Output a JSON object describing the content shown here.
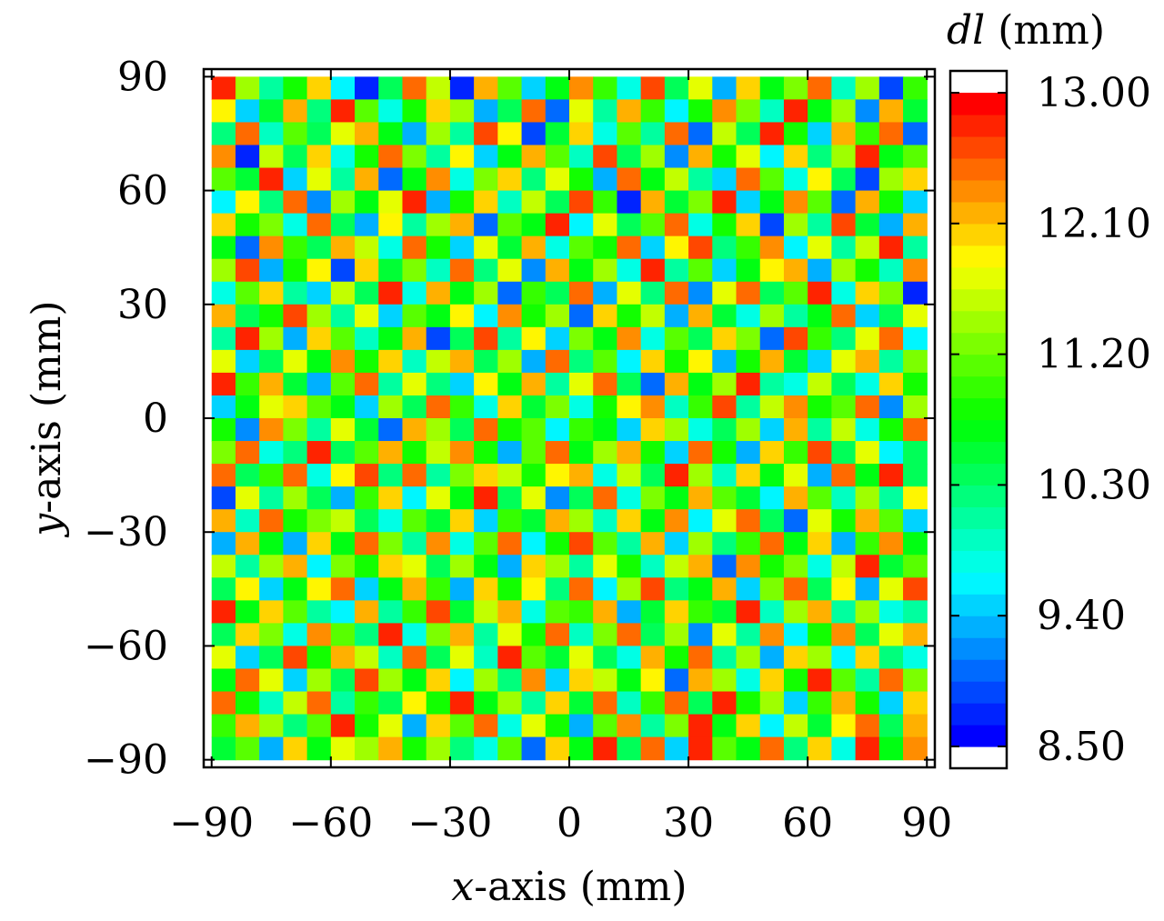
{
  "chart_data": {
    "type": "heatmap",
    "xlabel_var": "x",
    "xlabel": "-axis (mm)",
    "ylabel_var": "y",
    "ylabel": "-axis (mm)",
    "colorbar_label_var": "dl",
    "colorbar_label": " (mm)",
    "xlim": [
      -92,
      92
    ],
    "ylim": [
      -92,
      92
    ],
    "x_ticks": [
      -90,
      -60,
      -30,
      0,
      30,
      60,
      90
    ],
    "x_tick_labels": [
      "−90",
      "−60",
      "−30",
      "0",
      "30",
      "60",
      "90"
    ],
    "y_ticks": [
      -90,
      -60,
      -30,
      0,
      30,
      60,
      90
    ],
    "y_tick_labels": [
      "−90",
      "−60",
      "−30",
      "0",
      "30",
      "60",
      "90"
    ],
    "color_range": [
      8.5,
      13.0
    ],
    "colorbar_ticks": [
      8.5,
      9.4,
      10.3,
      11.2,
      12.1,
      13.0
    ],
    "colorbar_tick_labels": [
      "8.50",
      "9.40",
      "10.30",
      "11.20",
      "12.10",
      "13.00"
    ],
    "grid_size": [
      30,
      30
    ],
    "cell_size_mm": 6,
    "colors": {
      "colormap": [
        "#0000ff",
        "#0080ff",
        "#00ffff",
        "#00ff80",
        "#00ff00",
        "#80ff00",
        "#ffff00",
        "#ff8000",
        "#ff0000"
      ]
    },
    "note_values": "Cell values (mm) per row from top (y=+90) to bottom (y=-90), columns x=-90..+90. Values estimated from a dense random-looking pattern.",
    "values": [
      [
        12.9,
        11.4,
        10.0,
        10.9,
        12.1,
        9.6,
        8.6,
        10.3,
        12.5,
        11.6,
        8.7,
        12.2,
        11.1,
        9.5,
        10.6,
        12.4,
        11.0,
        9.8,
        12.7,
        10.4,
        11.8,
        9.3,
        12.0,
        10.7,
        11.3,
        12.6,
        9.9,
        11.5,
        8.8,
        11.0
      ],
      [
        11.9,
        9.4,
        10.5,
        12.3,
        10.2,
        12.8,
        11.2,
        9.7,
        10.9,
        12.0,
        11.5,
        9.2,
        10.4,
        12.6,
        8.9,
        11.7,
        10.1,
        12.2,
        11.0,
        9.6,
        10.8,
        12.4,
        11.3,
        9.9,
        12.9,
        10.6,
        11.4,
        9.1,
        12.2,
        10.5
      ],
      [
        10.2,
        12.6,
        9.9,
        11.1,
        10.4,
        11.8,
        12.3,
        10.7,
        9.3,
        11.5,
        10.1,
        12.7,
        11.9,
        8.8,
        10.5,
        12.1,
        9.7,
        11.2,
        10.0,
        12.5,
        8.9,
        11.6,
        10.3,
        12.8,
        10.9,
        9.4,
        12.2,
        11.0,
        12.6,
        9.0
      ],
      [
        12.4,
        8.7,
        11.6,
        10.3,
        12.1,
        9.8,
        10.9,
        12.6,
        11.3,
        10.0,
        11.9,
        9.5,
        10.7,
        12.2,
        11.1,
        9.9,
        12.7,
        10.4,
        11.5,
        9.1,
        12.3,
        10.8,
        11.7,
        9.6,
        12.0,
        10.2,
        11.4,
        12.9,
        10.6,
        11.2
      ],
      [
        11.1,
        10.5,
        12.8,
        9.4,
        11.7,
        10.0,
        12.2,
        8.9,
        10.6,
        12.4,
        9.7,
        11.3,
        12.0,
        10.2,
        11.8,
        10.9,
        9.2,
        12.5,
        10.7,
        11.6,
        10.1,
        9.5,
        12.6,
        11.2,
        9.8,
        11.9,
        10.4,
        8.8,
        11.5,
        12.1
      ],
      [
        9.6,
        11.9,
        10.2,
        12.5,
        9.1,
        11.4,
        10.7,
        11.8,
        12.9,
        9.3,
        10.8,
        12.1,
        9.9,
        11.6,
        10.3,
        12.7,
        11.0,
        8.7,
        12.2,
        10.5,
        11.3,
        12.8,
        9.4,
        10.6,
        12.4,
        11.1,
        9.0,
        12.3,
        10.9,
        9.5
      ],
      [
        12.0,
        10.8,
        11.3,
        9.7,
        12.6,
        10.4,
        9.2,
        11.9,
        10.1,
        11.5,
        12.3,
        8.9,
        11.2,
        10.6,
        12.9,
        9.6,
        11.7,
        10.3,
        11.1,
        12.5,
        9.8,
        10.9,
        12.1,
        8.8,
        11.4,
        10.0,
        12.7,
        10.5,
        9.3,
        12.2
      ],
      [
        10.7,
        9.0,
        12.4,
        11.0,
        10.3,
        12.2,
        11.6,
        9.8,
        12.5,
        10.9,
        9.4,
        11.7,
        10.5,
        12.3,
        9.7,
        11.2,
        10.8,
        12.6,
        9.5,
        11.9,
        12.7,
        10.2,
        11.0,
        12.4,
        9.6,
        11.8,
        10.1,
        11.6,
        12.8,
        10.0
      ],
      [
        11.5,
        12.7,
        9.3,
        10.8,
        11.9,
        8.8,
        12.0,
        10.5,
        11.3,
        9.9,
        12.6,
        10.2,
        11.8,
        9.1,
        12.2,
        10.6,
        11.4,
        9.7,
        12.9,
        10.0,
        11.2,
        9.4,
        10.7,
        11.9,
        12.3,
        9.2,
        11.5,
        10.8,
        9.9,
        12.4
      ],
      [
        9.8,
        11.2,
        12.1,
        10.1,
        9.5,
        11.6,
        10.3,
        12.8,
        9.7,
        12.2,
        10.6,
        11.4,
        8.9,
        11.0,
        10.4,
        12.5,
        9.3,
        11.8,
        10.2,
        12.6,
        9.1,
        11.7,
        12.5,
        10.3,
        11.1,
        12.8,
        9.8,
        12.0,
        11.3,
        8.7
      ],
      [
        12.3,
        10.4,
        10.9,
        12.7,
        11.4,
        10.0,
        11.8,
        9.4,
        11.1,
        10.7,
        11.9,
        9.6,
        12.4,
        10.8,
        11.5,
        9.0,
        12.1,
        10.9,
        11.6,
        9.3,
        12.2,
        10.5,
        9.7,
        11.4,
        10.0,
        10.7,
        12.6,
        9.5,
        10.4,
        11.8
      ],
      [
        10.1,
        12.9,
        11.5,
        9.2,
        12.0,
        11.2,
        9.9,
        10.6,
        12.3,
        8.8,
        10.4,
        12.7,
        10.0,
        11.9,
        9.4,
        11.3,
        10.6,
        12.4,
        9.8,
        11.1,
        10.3,
        12.0,
        11.3,
        8.9,
        12.7,
        11.0,
        10.2,
        11.7,
        12.5,
        9.6
      ],
      [
        11.7,
        9.5,
        10.3,
        11.8,
        10.6,
        12.4,
        10.8,
        12.1,
        9.9,
        11.6,
        12.2,
        10.3,
        11.5,
        9.3,
        12.6,
        10.2,
        11.1,
        9.6,
        12.0,
        10.8,
        11.9,
        9.2,
        10.9,
        12.3,
        10.5,
        9.4,
        11.8,
        12.2,
        10.1,
        11.3
      ],
      [
        12.8,
        11.0,
        12.2,
        10.5,
        9.3,
        11.1,
        12.6,
        10.0,
        11.7,
        10.2,
        9.5,
        11.9,
        10.7,
        12.2,
        10.0,
        11.8,
        12.5,
        10.4,
        9.0,
        12.3,
        10.6,
        11.5,
        12.8,
        10.1,
        9.7,
        11.6,
        10.3,
        9.8,
        12.0,
        10.9
      ],
      [
        9.4,
        10.6,
        11.7,
        12.0,
        11.2,
        10.7,
        9.5,
        11.5,
        10.4,
        12.6,
        11.0,
        9.8,
        12.1,
        10.5,
        11.3,
        9.7,
        10.8,
        11.9,
        12.4,
        9.9,
        11.0,
        12.7,
        10.0,
        11.6,
        12.4,
        10.8,
        11.2,
        12.6,
        9.1,
        11.5
      ],
      [
        10.9,
        9.1,
        12.4,
        11.3,
        10.0,
        11.7,
        10.5,
        9.0,
        12.2,
        11.4,
        10.3,
        12.5,
        10.9,
        11.2,
        9.6,
        11.0,
        10.6,
        9.4,
        12.0,
        11.5,
        9.8,
        10.3,
        11.5,
        9.4,
        12.2,
        10.1,
        11.6,
        9.7,
        10.8,
        12.6
      ],
      [
        11.3,
        12.5,
        9.7,
        10.2,
        12.8,
        10.4,
        11.1,
        12.3,
        10.8,
        11.6,
        12.4,
        10.9,
        9.3,
        11.1,
        12.5,
        10.7,
        11.4,
        12.2,
        10.9,
        9.5,
        12.6,
        10.8,
        9.2,
        12.0,
        11.0,
        12.7,
        10.4,
        11.8,
        9.6,
        10.3
      ],
      [
        12.6,
        10.3,
        11.0,
        12.6,
        9.8,
        11.9,
        12.7,
        10.2,
        12.5,
        10.0,
        11.3,
        12.0,
        11.6,
        10.8,
        11.9,
        12.3,
        9.7,
        11.6,
        10.4,
        12.8,
        11.4,
        9.9,
        12.1,
        10.7,
        11.8,
        9.2,
        12.5,
        10.6,
        12.9,
        10.4
      ],
      [
        8.8,
        11.7,
        10.1,
        11.5,
        10.4,
        9.3,
        11.0,
        12.1,
        9.6,
        11.8,
        10.7,
        12.9,
        10.4,
        11.7,
        9.1,
        10.4,
        12.6,
        9.8,
        11.3,
        10.7,
        12.2,
        11.1,
        10.5,
        9.6,
        12.3,
        11.1,
        9.9,
        11.4,
        10.0,
        11.9
      ],
      [
        12.2,
        9.9,
        12.6,
        10.8,
        11.3,
        11.6,
        10.4,
        9.7,
        11.2,
        10.5,
        12.1,
        9.4,
        11.0,
        10.5,
        12.2,
        11.5,
        9.9,
        12.1,
        10.6,
        12.4,
        9.6,
        11.8,
        12.6,
        10.3,
        9.0,
        11.7,
        10.8,
        12.2,
        11.2,
        9.5
      ],
      [
        9.2,
        12.3,
        10.6,
        9.3,
        12.0,
        10.7,
        12.5,
        11.3,
        10.0,
        12.4,
        9.8,
        11.2,
        12.6,
        9.6,
        10.8,
        12.7,
        11.2,
        10.0,
        12.3,
        9.4,
        11.5,
        10.2,
        11.0,
        12.5,
        10.6,
        12.0,
        9.3,
        11.0,
        12.4,
        10.6
      ],
      [
        11.6,
        10.0,
        11.5,
        12.2,
        9.6,
        11.3,
        10.9,
        12.0,
        11.8,
        10.3,
        11.4,
        10.7,
        9.2,
        12.0,
        11.4,
        10.1,
        11.7,
        10.8,
        9.9,
        11.6,
        12.3,
        8.9,
        12.4,
        10.9,
        11.3,
        9.7,
        11.6,
        12.8,
        10.5,
        11.2
      ],
      [
        10.4,
        11.9,
        9.5,
        10.6,
        11.9,
        12.5,
        9.5,
        10.6,
        12.2,
        11.0,
        9.3,
        12.1,
        10.8,
        11.9,
        10.2,
        12.5,
        9.6,
        11.5,
        12.7,
        10.2,
        10.7,
        12.2,
        9.4,
        11.3,
        12.6,
        10.3,
        11.9,
        9.2,
        11.7,
        12.7
      ],
      [
        12.9,
        10.7,
        12.0,
        11.2,
        10.1,
        9.6,
        12.3,
        10.1,
        11.0,
        12.7,
        10.5,
        11.6,
        12.3,
        9.7,
        11.1,
        11.0,
        12.2,
        9.3,
        10.5,
        12.1,
        11.0,
        10.5,
        12.8,
        9.9,
        11.5,
        12.2,
        10.0,
        11.5,
        9.8,
        10.1
      ],
      [
        10.3,
        12.1,
        11.3,
        9.8,
        12.4,
        11.1,
        10.2,
        12.8,
        9.7,
        11.3,
        12.2,
        10.0,
        11.7,
        10.9,
        12.6,
        9.9,
        11.3,
        12.6,
        10.3,
        11.4,
        9.1,
        11.7,
        10.1,
        12.4,
        9.6,
        10.8,
        12.4,
        10.3,
        11.8,
        12.3
      ],
      [
        11.8,
        9.4,
        10.4,
        12.7,
        10.8,
        12.2,
        11.6,
        9.9,
        12.5,
        10.4,
        11.8,
        9.9,
        12.9,
        11.2,
        10.5,
        11.8,
        10.4,
        9.8,
        12.2,
        10.8,
        12.6,
        10.0,
        11.5,
        9.2,
        12.0,
        11.4,
        9.6,
        12.1,
        10.2,
        9.7
      ],
      [
        10.6,
        12.6,
        11.8,
        9.5,
        11.5,
        10.3,
        12.7,
        11.4,
        10.6,
        12.1,
        9.6,
        11.5,
        10.2,
        12.4,
        9.4,
        12.1,
        11.6,
        10.7,
        11.9,
        9.0,
        12.3,
        11.4,
        9.7,
        12.1,
        10.8,
        12.9,
        11.2,
        10.0,
        12.6,
        11.3
      ],
      [
        12.5,
        10.9,
        9.9,
        11.6,
        12.5,
        10.0,
        11.0,
        10.4,
        11.9,
        10.8,
        12.8,
        10.6,
        11.4,
        10.1,
        12.0,
        10.5,
        12.5,
        9.9,
        11.0,
        12.6,
        10.3,
        12.8,
        10.9,
        11.4,
        9.5,
        11.0,
        12.3,
        10.9,
        9.4,
        12.0
      ],
      [
        11.0,
        12.3,
        11.5,
        10.2,
        11.2,
        12.9,
        10.8,
        11.8,
        9.3,
        12.0,
        11.1,
        12.5,
        9.8,
        11.7,
        10.9,
        9.2,
        11.1,
        12.4,
        10.0,
        11.3,
        12.8,
        10.6,
        12.0,
        9.6,
        11.6,
        10.5,
        11.9,
        12.6,
        10.4,
        12.2
      ],
      [
        10.5,
        11.1,
        9.2,
        12.1,
        10.6,
        11.8,
        11.4,
        12.2,
        10.9,
        11.5,
        10.2,
        9.7,
        11.2,
        8.9,
        12.1,
        10.7,
        12.9,
        10.3,
        12.6,
        9.5,
        12.9,
        11.1,
        10.7,
        12.5,
        10.2,
        12.0,
        9.8,
        12.8,
        10.6,
        12.4
      ]
    ]
  }
}
